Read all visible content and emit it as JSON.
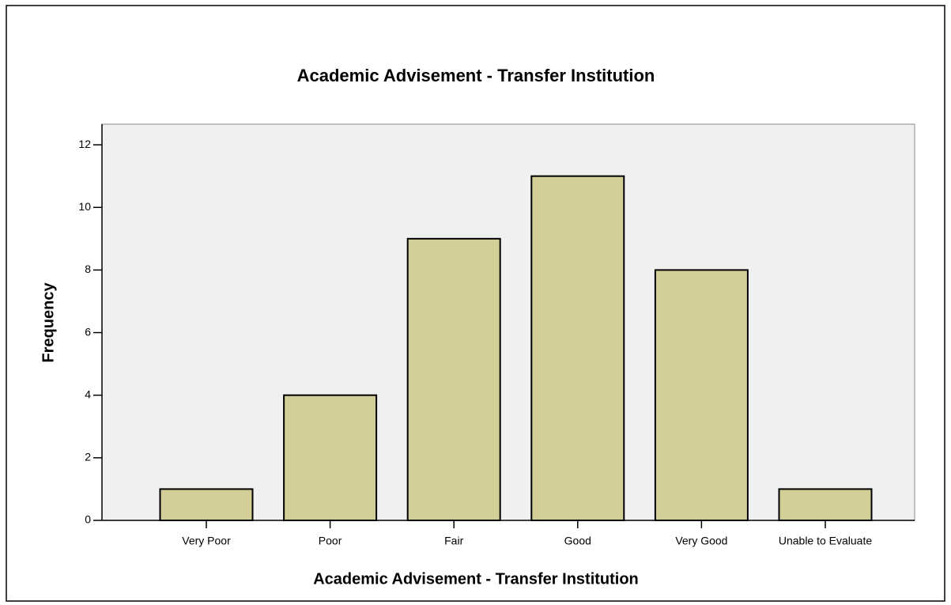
{
  "chart_data": {
    "type": "bar",
    "title": "Academic Advisement - Transfer Institution",
    "x_label": "Academic Advisement - Transfer Institution",
    "y_label": "Frequency",
    "categories": [
      "Very Poor",
      "Poor",
      "Fair",
      "Good",
      "Very Good",
      "Unable to Evaluate"
    ],
    "values": [
      1,
      4,
      9,
      11,
      8,
      1
    ],
    "color": "#d3cd98",
    "ylim": [
      0,
      12.66
    ],
    "yticks": [
      0,
      2,
      4,
      6,
      8,
      10,
      12
    ],
    "grid": false
  }
}
